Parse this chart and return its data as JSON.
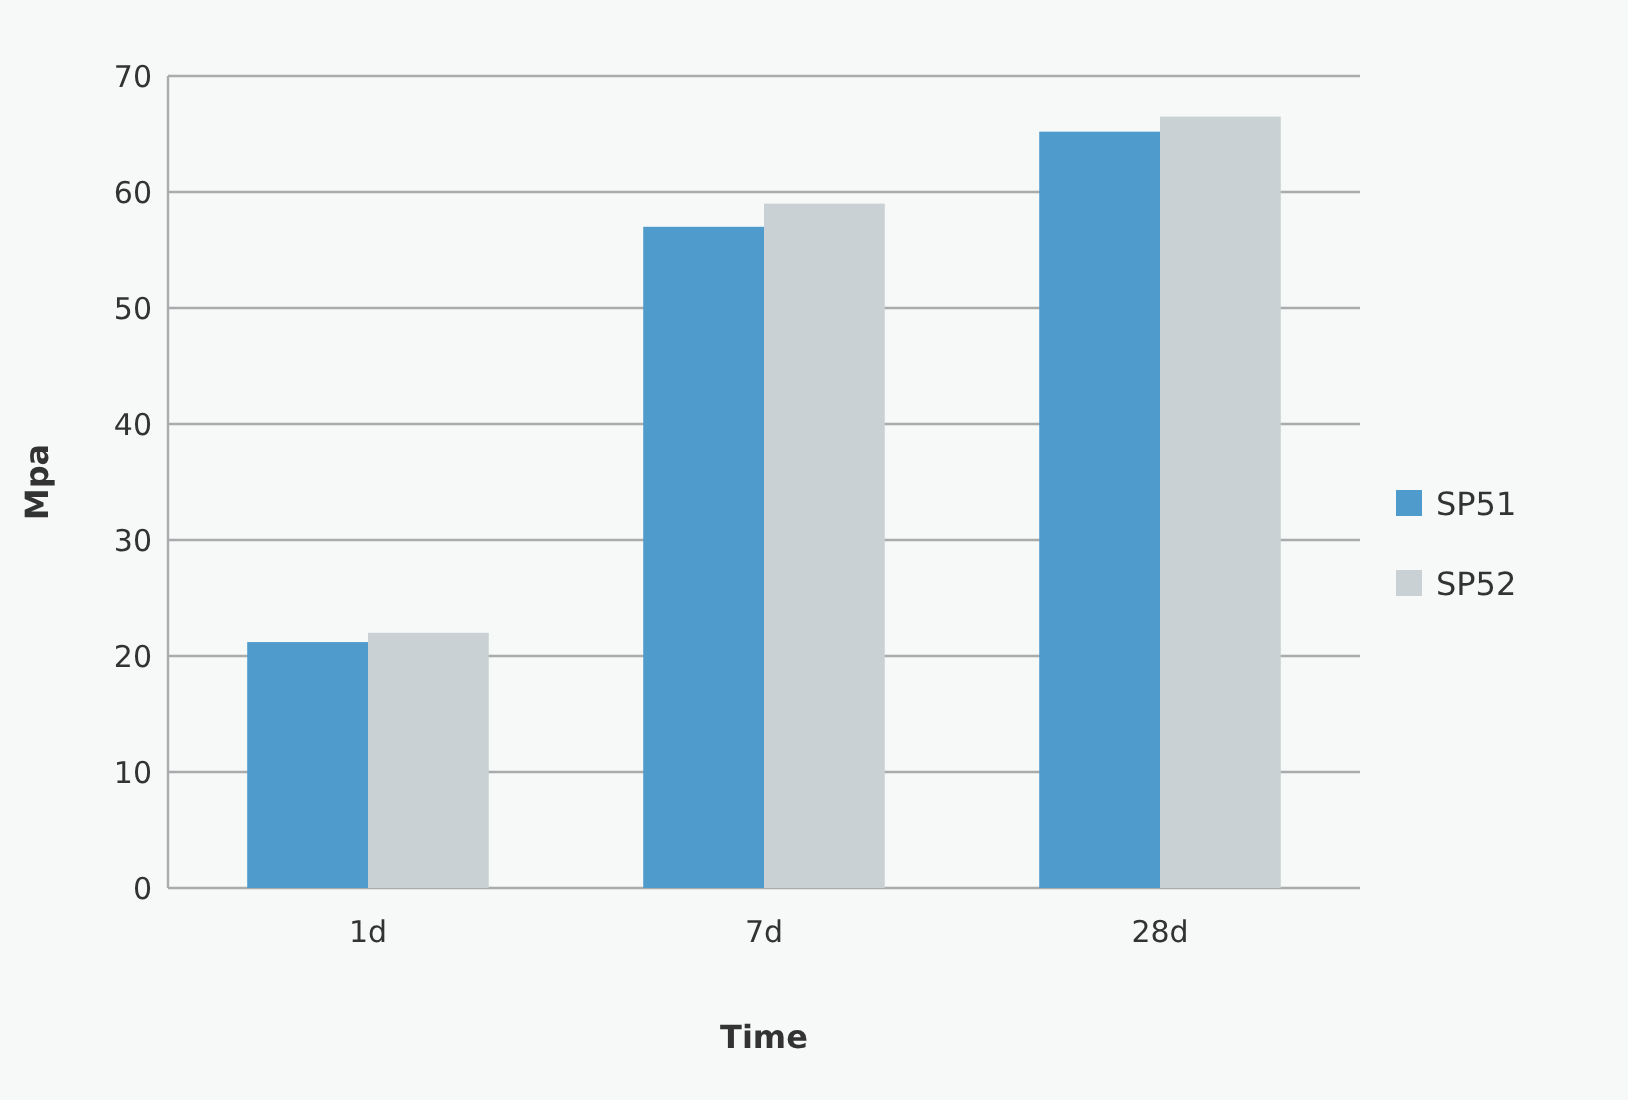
{
  "chart_data": {
    "type": "bar",
    "xlabel": "Time",
    "ylabel": "Mpa",
    "categories": [
      "1d",
      "7d",
      "28d"
    ],
    "series": [
      {
        "name": "SP51",
        "color": "#4f9bcc",
        "values": [
          21.2,
          57,
          65.2
        ]
      },
      {
        "name": "SP52",
        "color": "#c9d1d4",
        "values": [
          22,
          59,
          66.5
        ]
      }
    ],
    "ylim": [
      0,
      70
    ],
    "yticks": [
      0,
      10,
      20,
      30,
      40,
      50,
      60,
      70
    ],
    "grid": "y",
    "legend": "right"
  }
}
